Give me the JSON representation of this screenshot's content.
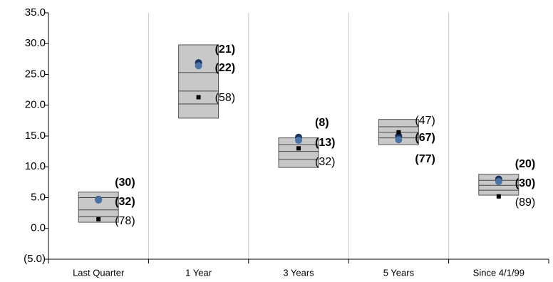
{
  "chart_data": {
    "type": "range-box",
    "categories": [
      "Last Quarter",
      "1 Year",
      "3 Years",
      "5 Years",
      "Since 4/1/99"
    ],
    "boxes": {
      "high": [
        5.9,
        29.8,
        14.7,
        17.7,
        8.8
      ],
      "upper": [
        5.0,
        25.3,
        13.6,
        16.5,
        7.8
      ],
      "median": [
        3.0,
        22.3,
        12.5,
        15.6,
        7.0
      ],
      "lower": [
        1.9,
        20.2,
        11.2,
        14.7,
        6.2
      ],
      "low": [
        1.0,
        17.9,
        9.9,
        13.6,
        5.4
      ],
      "color": "#c8c8c8"
    },
    "series": [
      {
        "color": "#1b3560",
        "marker": "circle",
        "values": [
          4.7,
          26.9,
          14.8,
          15.0,
          8.0
        ],
        "value_labels": [
          "(30)",
          "(21)",
          "(8)",
          "(67)",
          "(20)"
        ]
      },
      {
        "color": "#4a74a8",
        "marker": "circle",
        "values": [
          4.6,
          26.4,
          14.3,
          14.4,
          7.6
        ],
        "value_labels": [
          "(32)",
          "(22)",
          "(13)",
          "(77)",
          "(30)"
        ]
      },
      {
        "color": "#000000",
        "marker": "square",
        "values": [
          1.5,
          21.3,
          13.0,
          15.6,
          5.2
        ],
        "value_labels": [
          "(78)",
          "(58)",
          "(32)",
          "(47)",
          "(89)"
        ]
      }
    ],
    "ylim": [
      -5,
      35
    ],
    "yticks": [
      {
        "value": -5,
        "label": "(5.0)"
      },
      {
        "value": 0,
        "label": "0.0"
      },
      {
        "value": 5,
        "label": "5.0"
      },
      {
        "value": 10,
        "label": "10.0"
      },
      {
        "value": 15,
        "label": "15.0"
      },
      {
        "value": 20,
        "label": "20.0"
      },
      {
        "value": 25,
        "label": "25.0"
      },
      {
        "value": 30,
        "label": "30.0"
      },
      {
        "value": 35,
        "label": "35.0"
      }
    ],
    "grid": true
  }
}
